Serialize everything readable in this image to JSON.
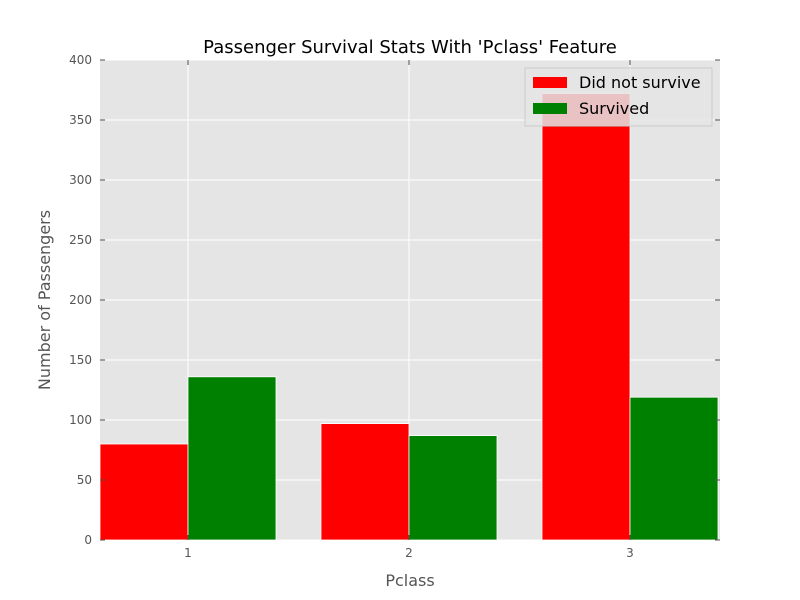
{
  "chart_data": {
    "type": "bar",
    "title": "Passenger Survival Stats With 'Pclass' Feature",
    "xlabel": "Pclass",
    "ylabel": "Number of Passengers",
    "categories": [
      "1",
      "2",
      "3"
    ],
    "series": [
      {
        "name": "Did not survive",
        "color": "#ff0000",
        "values": [
          80,
          97,
          372
        ]
      },
      {
        "name": "Survived",
        "color": "#008000",
        "values": [
          136,
          87,
          119
        ]
      }
    ],
    "ylim": [
      0,
      400
    ],
    "yticks": [
      0,
      50,
      100,
      150,
      200,
      250,
      300,
      350,
      400
    ],
    "grid": true,
    "legend": "top-right",
    "background": "#e5e5e5"
  }
}
